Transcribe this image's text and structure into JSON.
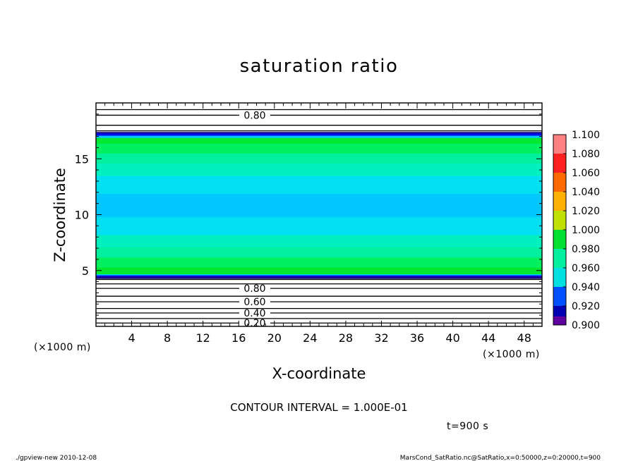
{
  "chart_data": {
    "type": "heatmap",
    "title": "saturation ratio",
    "xlabel": "X-coordinate",
    "ylabel": "Z-coordinate",
    "x_unit": "(×1000 m)",
    "y_unit": "(×1000 m)",
    "xlim": [
      0,
      50
    ],
    "ylim": [
      0,
      20
    ],
    "x_ticks": [
      4,
      8,
      12,
      16,
      20,
      24,
      28,
      32,
      36,
      40,
      44,
      48
    ],
    "y_ticks": [
      5,
      10,
      15
    ],
    "colorbar": {
      "levels": [
        "1.100",
        "1.080",
        "1.060",
        "1.040",
        "1.020",
        "1.000",
        "0.980",
        "0.960",
        "0.940",
        "0.920",
        "0.900"
      ],
      "colors": [
        "#ff8080",
        "#ff3030",
        "#ff6a00",
        "#ffa000",
        "#ffd000",
        "#a0e000",
        "#00e030",
        "#00e0a0",
        "#00e0e0",
        "#00b8ff",
        "#0040ff",
        "#0000b0",
        "#6000a0"
      ]
    },
    "shaded_profile": [
      {
        "z": [
          4.3,
          4.6
        ],
        "value": "0.900-0.940"
      },
      {
        "z": [
          4.6,
          6.0
        ],
        "value": "0.980-1.000"
      },
      {
        "z": [
          6.0,
          9.0
        ],
        "value": "0.960-0.980"
      },
      {
        "z": [
          9.0,
          11.5
        ],
        "value": "0.940-0.960"
      },
      {
        "z": [
          11.5,
          14.0
        ],
        "value": "0.960-0.980"
      },
      {
        "z": [
          14.0,
          17.0
        ],
        "value": "0.980-1.000"
      },
      {
        "z": [
          17.0,
          17.4
        ],
        "value": "0.900-0.940"
      }
    ],
    "contours_lower": [
      {
        "z": 0.3,
        "label": "0.20"
      },
      {
        "z": 0.7,
        "label": ""
      },
      {
        "z": 1.2,
        "label": "0.40"
      },
      {
        "z": 1.6,
        "label": ""
      },
      {
        "z": 2.2,
        "label": "0.60"
      },
      {
        "z": 2.7,
        "label": ""
      },
      {
        "z": 3.4,
        "label": "0.80"
      },
      {
        "z": 3.8,
        "label": ""
      },
      {
        "z": 4.2,
        "label": ""
      }
    ],
    "contours_upper": [
      {
        "z": 17.5,
        "label": ""
      },
      {
        "z": 18.0,
        "label": ""
      },
      {
        "z": 18.9,
        "label": "0.80"
      },
      {
        "z": 19.4,
        "label": ""
      }
    ],
    "contour_interval": "CONTOUR INTERVAL = 1.000E-01",
    "time_label": "t=900 s",
    "footer_left": "./gpview-new  2010-12-08",
    "footer_right": "MarsCond_SatRatio.nc@SatRatio,x=0:50000,z=0:20000,t=900"
  }
}
